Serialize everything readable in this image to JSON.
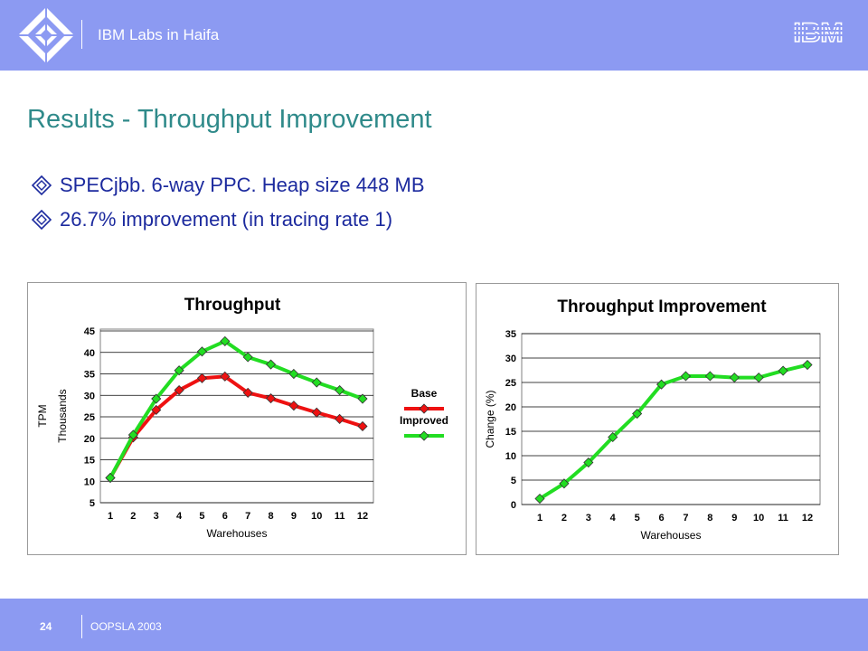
{
  "header": {
    "org": "IBM Labs in Haifa",
    "logo": "IBM"
  },
  "title": "Results - Throughput Improvement",
  "bullets": [
    "SPECjbb. 6-way PPC. Heap size 448 MB",
    "26.7% improvement (in tracing rate 1)"
  ],
  "footer": {
    "page": "24",
    "event": "OOPSLA 2003"
  },
  "colors": {
    "bar": "#8c9af2",
    "title": "#2f8a8a",
    "bullet": "#1c2a9e",
    "base": "#ee1111",
    "improved": "#22dd22"
  },
  "chart_data": [
    {
      "type": "line",
      "title": "Throughput",
      "xlabel": "Warehouses",
      "ylabel": "TPM",
      "ylabel2": "Thousands",
      "x": [
        1,
        2,
        3,
        4,
        5,
        6,
        7,
        8,
        9,
        10,
        11,
        12
      ],
      "ylim": [
        5,
        45
      ],
      "yticks": [
        5,
        10,
        15,
        20,
        25,
        30,
        35,
        40,
        45
      ],
      "grid": true,
      "legend": "right",
      "series": [
        {
          "name": "Base",
          "color": "#ee1111",
          "values": [
            10.8,
            20.2,
            26.6,
            31.2,
            34.0,
            34.4,
            30.6,
            29.3,
            27.6,
            26.0,
            24.5,
            22.8
          ]
        },
        {
          "name": "Improved",
          "color": "#22dd22",
          "values": [
            10.8,
            20.8,
            29.2,
            35.8,
            40.2,
            42.6,
            38.9,
            37.2,
            35.0,
            33.0,
            31.2,
            29.2
          ]
        }
      ]
    },
    {
      "type": "line",
      "title": "Throughput   Improvement",
      "xlabel": "Warehouses",
      "ylabel": "Change (%)",
      "x": [
        1,
        2,
        3,
        4,
        5,
        6,
        7,
        8,
        9,
        10,
        11,
        12
      ],
      "ylim": [
        0,
        35
      ],
      "yticks": [
        0,
        5,
        10,
        15,
        20,
        25,
        30,
        35
      ],
      "grid": true,
      "series": [
        {
          "color": "#22dd22",
          "values": [
            1.2,
            4.3,
            8.6,
            13.8,
            18.6,
            24.6,
            26.3,
            26.3,
            26.0,
            26.0,
            27.4,
            28.6
          ]
        }
      ]
    }
  ]
}
